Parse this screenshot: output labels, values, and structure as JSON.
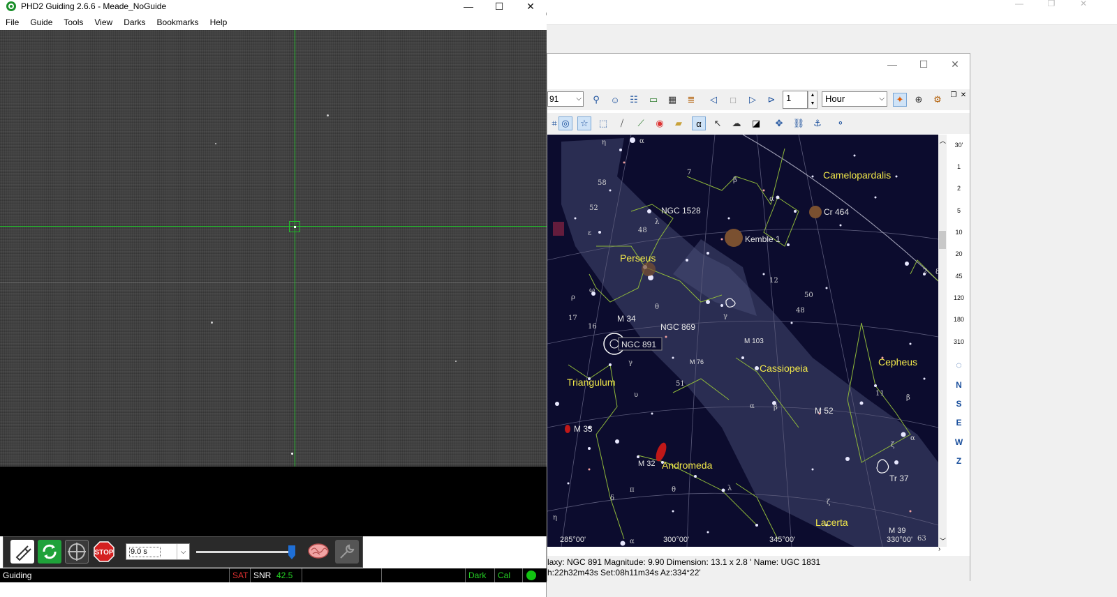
{
  "phd2": {
    "title": "PHD2 Guiding 2.6.6 - Meade_NoGuide",
    "menu": [
      "File",
      "Guide",
      "Tools",
      "View",
      "Darks",
      "Bookmarks",
      "Help"
    ],
    "exposure": "9.0 s",
    "status": {
      "state": "Guiding",
      "sat": "SAT",
      "snr_label": "SNR",
      "snr_value": "42.5",
      "dark": "Dark",
      "cal": "Cal"
    },
    "colors": {
      "crosshair": "#21c02a",
      "status_ok": "#11c211",
      "sat": "#e03030"
    }
  },
  "cdc": {
    "object_select": "91",
    "step_value": "1",
    "step_unit": "Hour",
    "fov_scale": [
      "30'",
      "1",
      "2",
      "5",
      "10",
      "20",
      "45",
      "120",
      "180",
      "310"
    ],
    "directions": [
      "N",
      "S",
      "E",
      "W",
      "Z"
    ],
    "constellations": [
      "Camelopardalis",
      "Perseus",
      "Cassiopeia",
      "Cepheus",
      "Triangulum",
      "Andromeda",
      "Lacerta"
    ],
    "objects": [
      "NGC 1528",
      "Cr 464",
      "Kemble 1",
      "M 34",
      "NGC 869",
      "NGC 891",
      "M 103",
      "M 76",
      "M 52",
      "M 33",
      "M 32",
      "Tr 37",
      "M 39"
    ],
    "ra_labels": [
      "285°00'",
      "300°00'",
      "345°00'",
      "330°00'"
    ],
    "status_line1": "laxy: NGC 891  Magnitude:  9.90  Dimension:  13.1 x  2.8 '  Name: UGC  1831",
    "status_line2": "h:22h32m43s  Set:08h11m34s Az:334°22'"
  }
}
